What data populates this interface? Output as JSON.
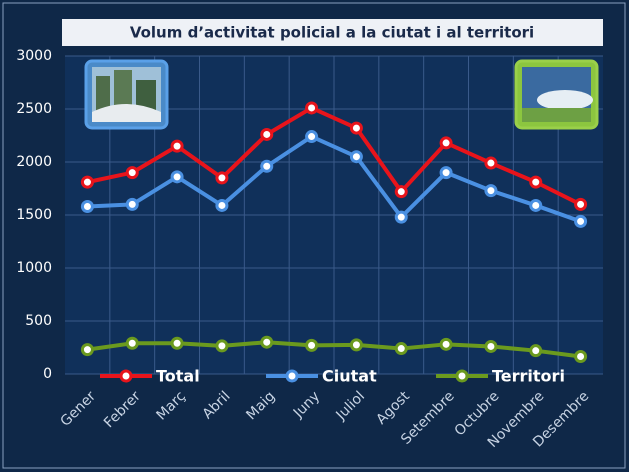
{
  "chart_data": {
    "type": "line",
    "title": "Volum d’activitat policial a la ciutat i al territori",
    "categories": [
      "Gener",
      "Febrer",
      "Març",
      "Abril",
      "Maig",
      "Juny",
      "Juliol",
      "Agost",
      "Setembre",
      "Octubre",
      "Novembre",
      "Desembre"
    ],
    "series": [
      {
        "name": "Total",
        "color": "#e8141b",
        "values": [
          1810,
          1900,
          2150,
          1850,
          2260,
          2510,
          2320,
          1720,
          2180,
          1990,
          1810,
          1600
        ]
      },
      {
        "name": "Ciutat",
        "color": "#4a90e2",
        "values": [
          1580,
          1600,
          1860,
          1590,
          1960,
          2240,
          2050,
          1480,
          1900,
          1730,
          1590,
          1440
        ]
      },
      {
        "name": "Territori",
        "color": "#6b9a1e",
        "values": [
          230,
          290,
          290,
          265,
          300,
          270,
          275,
          240,
          280,
          260,
          220,
          165
        ]
      }
    ],
    "ylim": [
      0,
      3000
    ],
    "yticks": [
      0,
      500,
      1000,
      1500,
      2000,
      2500,
      3000
    ],
    "grid": true
  }
}
